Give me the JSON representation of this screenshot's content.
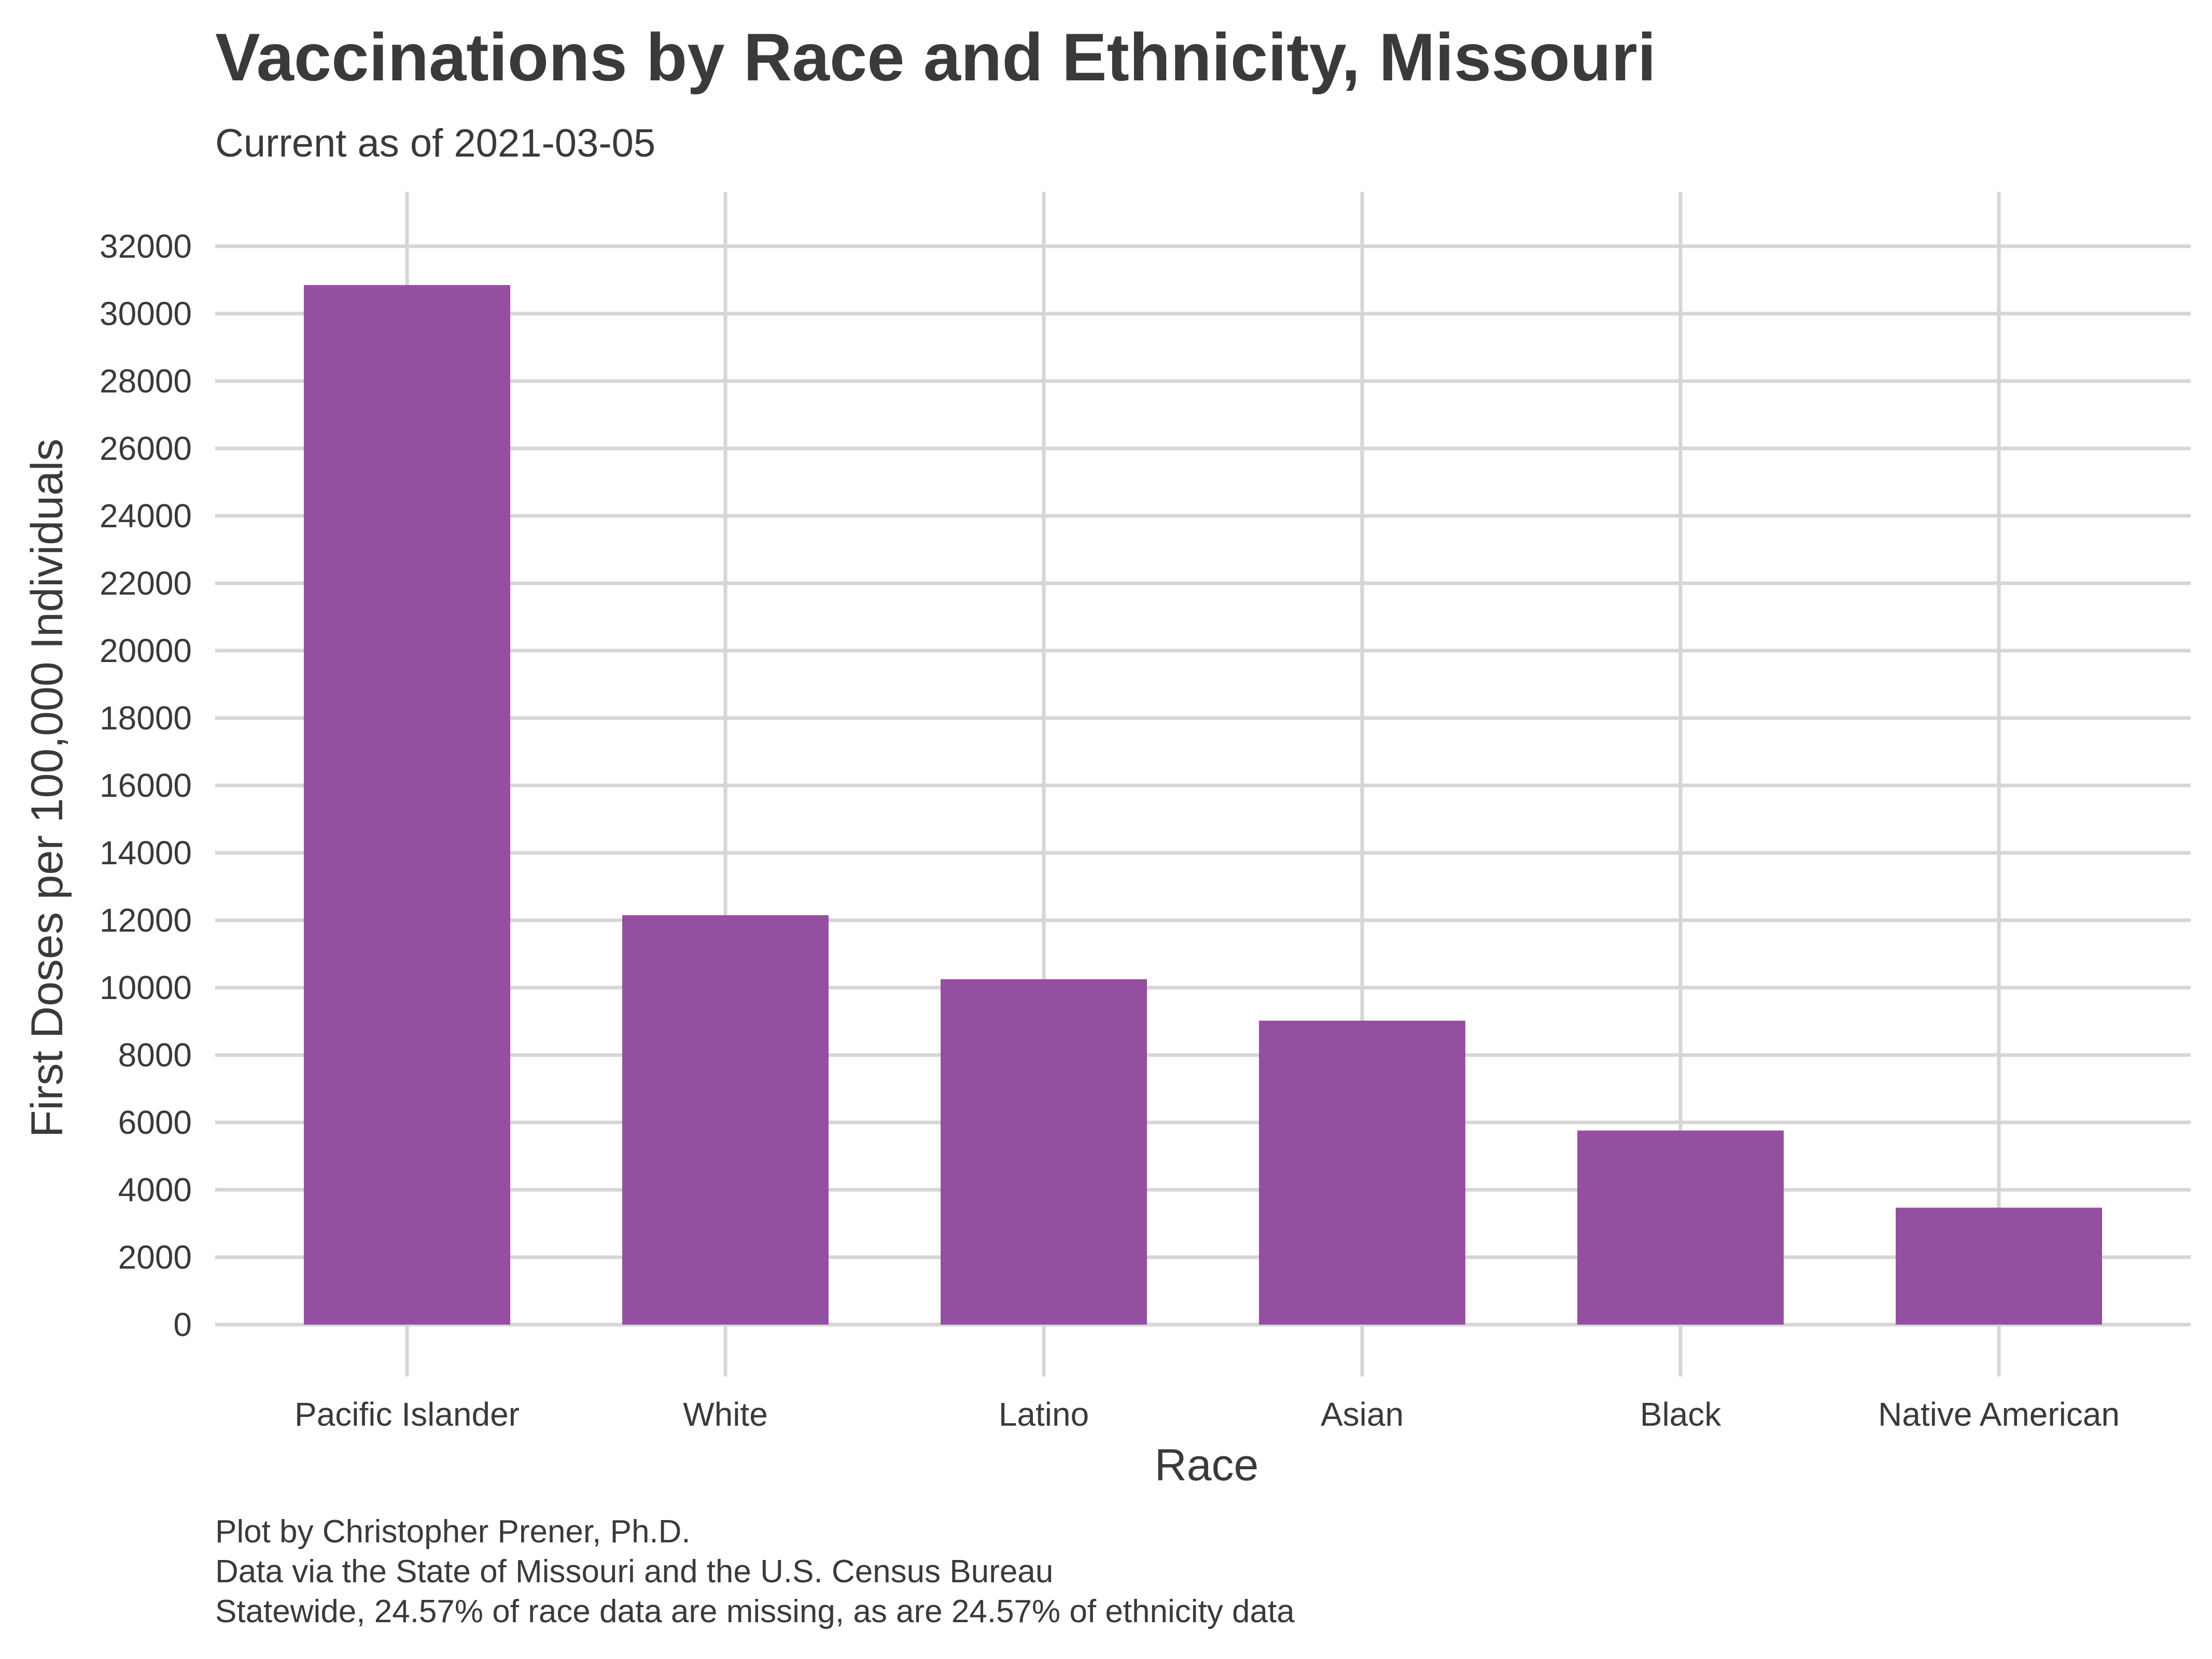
{
  "chart_data": {
    "type": "bar",
    "title": "Vaccinations by Race and Ethnicity, Missouri",
    "subtitle": "Current as of 2021-03-05",
    "xlabel": "Race",
    "ylabel": "First Doses per 100,000 Individuals",
    "categories": [
      "Pacific Islander",
      "White",
      "Latino",
      "Asian",
      "Black",
      "Native American"
    ],
    "values": [
      30850,
      12150,
      10250,
      9020,
      5760,
      3470
    ],
    "ylim": [
      0,
      32000
    ],
    "yticks": [
      0,
      2000,
      4000,
      6000,
      8000,
      10000,
      12000,
      14000,
      16000,
      18000,
      20000,
      22000,
      24000,
      26000,
      28000,
      30000,
      32000
    ],
    "bar_color": "#954fa1",
    "grid": true,
    "legend": "none"
  },
  "caption": {
    "line1": "Plot by Christopher Prener, Ph.D.",
    "line2": "Data via the State of Missouri and the U.S. Census Bureau",
    "line3": "Statewide, 24.57% of race data are missing, as are 24.57% of ethnicity data"
  }
}
